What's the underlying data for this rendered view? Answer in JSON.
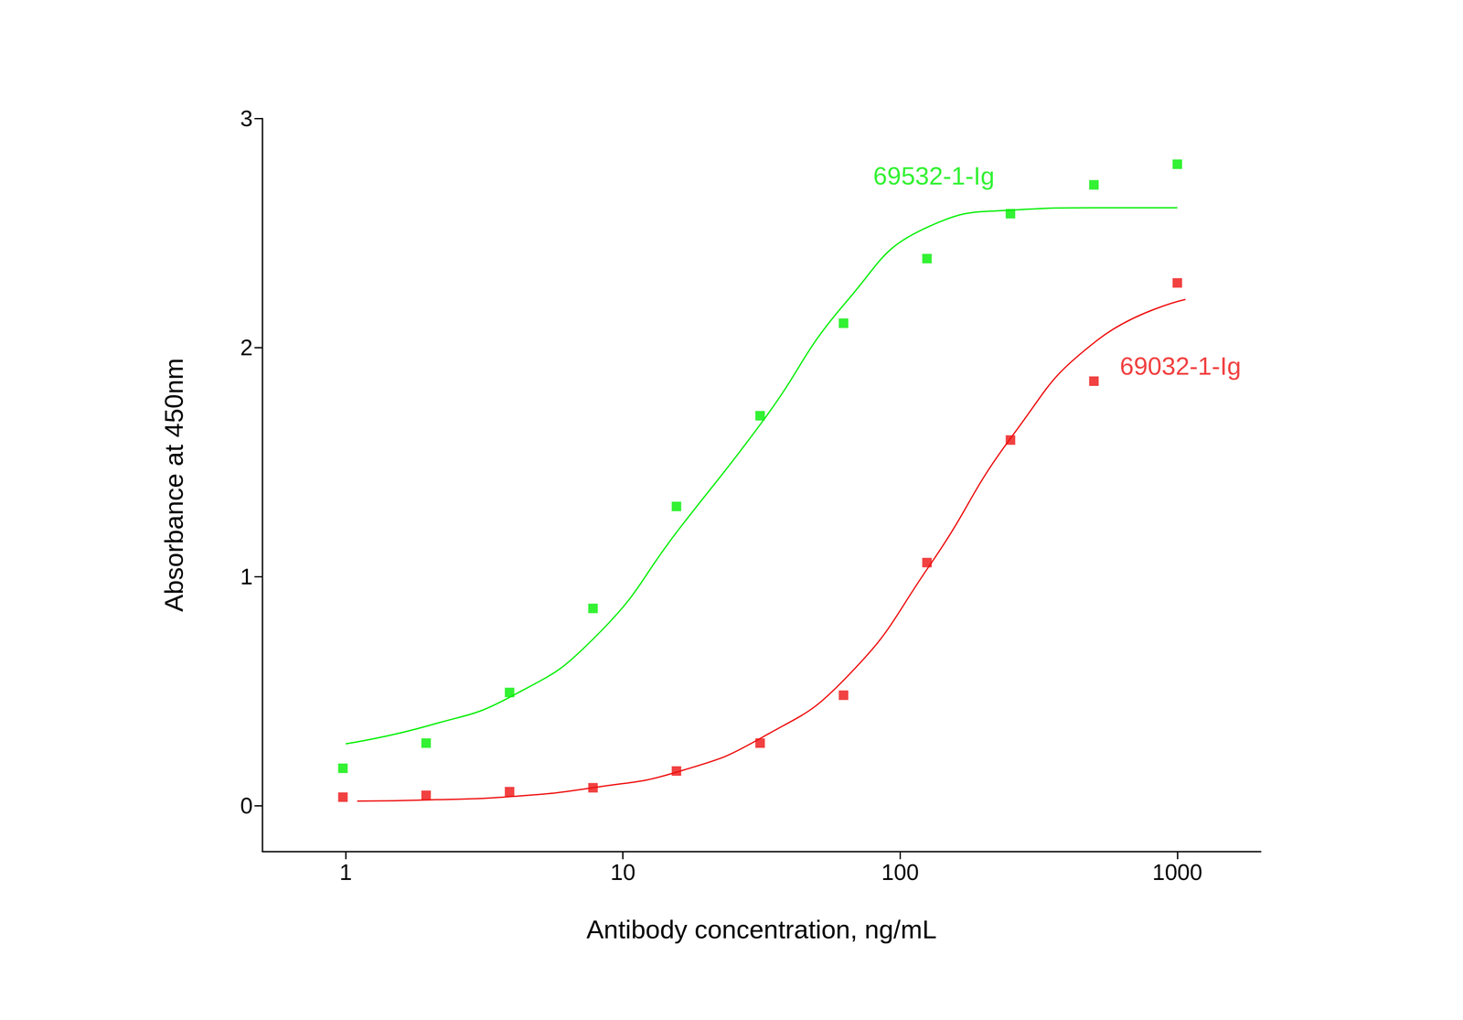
{
  "chart_data": {
    "type": "scatter",
    "x_label": "Antibody concentration, ng/mL",
    "y_label": "Absorbance at 450nm",
    "log": "x",
    "grid": false,
    "xlim": [
      0.5,
      2000
    ],
    "xticks": [
      1,
      10,
      100,
      1000
    ],
    "ylim": [
      -0.2,
      3
    ],
    "yticks": [
      0,
      1,
      2,
      3
    ],
    "series": [
      {
        "name": "69532-1-Ig",
        "type": "scatter",
        "marker": "square",
        "color": "#00ee00",
        "x": [
          0.977,
          1.95,
          3.9,
          7.8,
          15.6,
          31.25,
          62.5,
          125,
          250,
          500,
          1000
        ],
        "values": [
          0.163,
          0.273,
          0.494,
          0.861,
          1.306,
          1.702,
          2.106,
          2.388,
          2.584,
          2.71,
          2.8
        ]
      },
      {
        "name": "69532-1-Ig",
        "type": "line",
        "line_style": "solid",
        "color": "#00ee00",
        "x": [
          1,
          2,
          4,
          8,
          16,
          32,
          64,
          128,
          256,
          512,
          1000
        ],
        "values": [
          0.27,
          0.35,
          0.48,
          0.74,
          1.21,
          1.68,
          2.2,
          2.53,
          2.6,
          2.61,
          2.61
        ]
      },
      {
        "name": "69032-1-Ig",
        "type": "scatter",
        "marker": "square",
        "color": "#ee1111",
        "x": [
          0.977,
          1.95,
          3.9,
          7.8,
          15.6,
          31.25,
          62.5,
          125,
          250,
          500,
          1000
        ],
        "values": [
          0.037,
          0.045,
          0.061,
          0.078,
          0.151,
          0.273,
          0.482,
          1.061,
          1.596,
          1.853,
          2.282
        ]
      },
      {
        "name": "69032-1-Ig",
        "type": "line",
        "line_style": "solid",
        "color": "#ee1111",
        "x": [
          1.1,
          2,
          4,
          8,
          16,
          32,
          64,
          128,
          256,
          512,
          1070
        ],
        "values": [
          0.02,
          0.025,
          0.04,
          0.08,
          0.15,
          0.3,
          0.56,
          1.05,
          1.62,
          2.03,
          2.21
        ]
      }
    ],
    "annotations": [
      {
        "text": "69532-1-Ig",
        "x": 80,
        "y": 2.75,
        "color": "#00ee00"
      },
      {
        "text": "69032-1-Ig",
        "x": 620,
        "y": 1.92,
        "color": "#ee1111"
      }
    ]
  }
}
